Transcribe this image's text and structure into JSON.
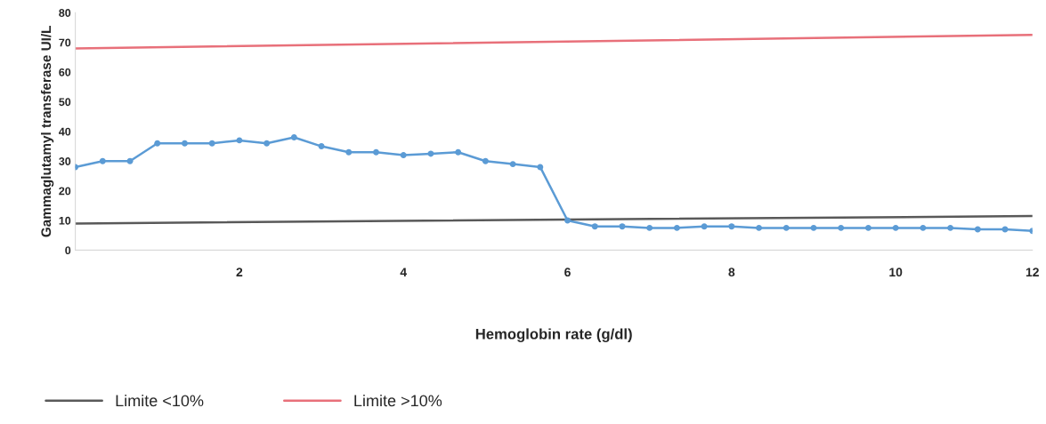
{
  "chart_data": {
    "type": "line",
    "xlabel": "Hemoglobin rate (g/dl)",
    "ylabel": "Gammaglutamyl transferase UI/L",
    "categories": [
      null,
      null,
      null,
      null,
      null,
      null,
      "2",
      null,
      null,
      null,
      null,
      null,
      "4",
      null,
      null,
      null,
      null,
      null,
      "6",
      null,
      null,
      null,
      null,
      null,
      "8",
      null,
      null,
      null,
      null,
      null,
      "10",
      null,
      null,
      null,
      null,
      "12"
    ],
    "series": [
      {
        "color": "#5b9bd5",
        "marker": "circle",
        "values": [
          28,
          30,
          30,
          36,
          36,
          36,
          37,
          36,
          38,
          35,
          33,
          33,
          32,
          32.5,
          33,
          30,
          29,
          28,
          10,
          8,
          8,
          7.5,
          7.5,
          8,
          8,
          7.5,
          7.5,
          7.5,
          7.5,
          7.5,
          7.5,
          7.5,
          7.5,
          7,
          7,
          6.5
        ]
      },
      {
        "name": "Limite <10%",
        "color": "#595959",
        "marker": "none",
        "values": [
          9,
          null,
          null,
          null,
          null,
          null,
          null,
          null,
          null,
          null,
          null,
          null,
          null,
          null,
          null,
          null,
          null,
          null,
          null,
          null,
          null,
          null,
          null,
          null,
          null,
          null,
          null,
          null,
          null,
          null,
          null,
          null,
          null,
          null,
          null,
          11.5
        ]
      },
      {
        "name": "Limite >10%",
        "color": "#e8707a",
        "marker": "none",
        "values": [
          68,
          null,
          null,
          null,
          null,
          null,
          null,
          null,
          null,
          null,
          null,
          null,
          null,
          null,
          null,
          null,
          null,
          null,
          null,
          null,
          null,
          null,
          null,
          null,
          null,
          null,
          null,
          null,
          null,
          null,
          null,
          null,
          null,
          null,
          null,
          72.5
        ]
      }
    ],
    "ylim": [
      0,
      80
    ],
    "yticks": [
      0,
      10,
      20,
      30,
      40,
      50,
      60,
      70,
      80
    ],
    "grid": false,
    "legend": "bottom"
  }
}
